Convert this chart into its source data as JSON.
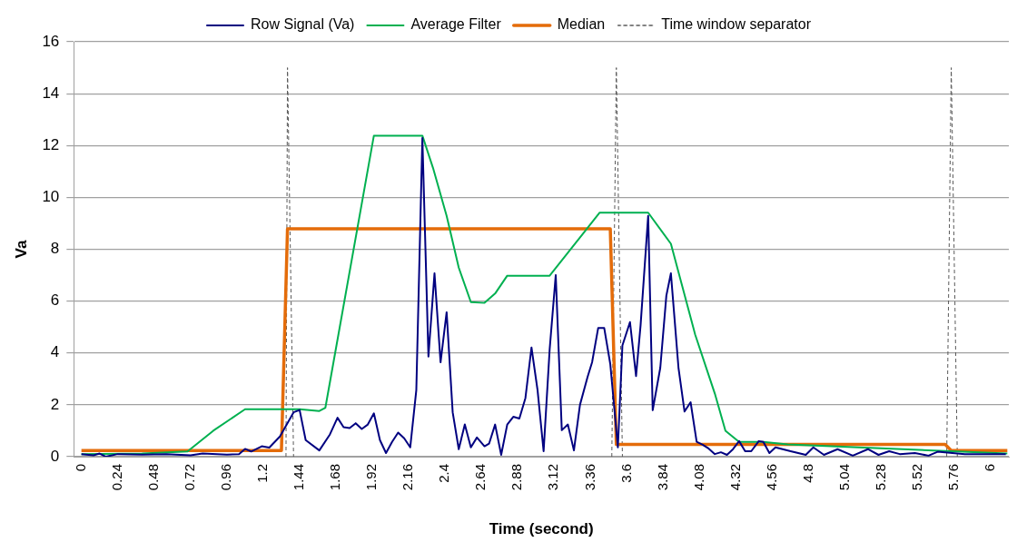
{
  "chart_data": {
    "type": "line",
    "xlabel": "Time (second)",
    "ylabel": "Va",
    "xlim": [
      -0.05,
      6.12
    ],
    "xticks": [
      0,
      0.24,
      0.48,
      0.72,
      0.96,
      1.2,
      1.44,
      1.68,
      1.92,
      2.16,
      2.4,
      2.64,
      2.88,
      3.12,
      3.36,
      3.6,
      3.84,
      4.08,
      4.32,
      4.56,
      4.8,
      5.04,
      5.28,
      5.52,
      5.76,
      6
    ],
    "ylim": [
      0,
      16
    ],
    "yticks": [
      0,
      2,
      4,
      6,
      8,
      10,
      12,
      14,
      16
    ],
    "grid": "y",
    "legend": "top",
    "marker": "none",
    "series": [
      {
        "name": "Row Signal (Va)",
        "color": "#000080",
        "x": [
          0,
          0.08,
          0.12,
          0.16,
          0.24,
          0.4,
          0.56,
          0.72,
          0.8,
          0.96,
          1.04,
          1.08,
          1.12,
          1.19,
          1.24,
          1.31,
          1.4,
          1.44,
          1.48,
          1.57,
          1.64,
          1.69,
          1.73,
          1.77,
          1.81,
          1.85,
          1.89,
          1.93,
          1.97,
          2.01,
          2.05,
          2.09,
          2.13,
          2.17,
          2.21,
          2.25,
          2.29,
          2.33,
          2.37,
          2.41,
          2.45,
          2.49,
          2.53,
          2.57,
          2.61,
          2.66,
          2.69,
          2.73,
          2.77,
          2.81,
          2.85,
          2.89,
          2.93,
          2.97,
          3.01,
          3.05,
          3.09,
          3.13,
          3.17,
          3.21,
          3.25,
          3.29,
          3.34,
          3.37,
          3.41,
          3.45,
          3.49,
          3.54,
          3.57,
          3.62,
          3.66,
          3.69,
          3.74,
          3.77,
          3.82,
          3.86,
          3.89,
          3.94,
          3.98,
          4.02,
          4.06,
          4.1,
          4.14,
          4.18,
          4.22,
          4.26,
          4.3,
          4.34,
          4.38,
          4.42,
          4.47,
          4.5,
          4.54,
          4.58,
          4.68,
          4.78,
          4.83,
          4.9,
          4.99,
          5.09,
          5.19,
          5.26,
          5.33,
          5.4,
          5.5,
          5.59,
          5.65,
          5.83,
          6.1
        ],
        "values": [
          0.1,
          0.05,
          0.12,
          0,
          0.1,
          0.08,
          0.1,
          0.05,
          0.12,
          0.08,
          0.1,
          0.3,
          0.2,
          0.4,
          0.35,
          0.78,
          1.71,
          1.8,
          0.64,
          0.24,
          0.86,
          1.5,
          1.14,
          1.1,
          1.29,
          1.07,
          1.24,
          1.67,
          0.64,
          0.14,
          0.57,
          0.93,
          0.71,
          0.36,
          2.57,
          12.29,
          3.86,
          7.07,
          3.64,
          5.57,
          1.71,
          0.29,
          1.24,
          0.36,
          0.74,
          0.4,
          0.5,
          1.24,
          0.07,
          1.24,
          1.54,
          1.47,
          2.26,
          4.21,
          2.57,
          0.21,
          4.14,
          7,
          1.02,
          1.24,
          0.24,
          2,
          3.07,
          3.64,
          4.96,
          4.96,
          3.57,
          0.36,
          4.29,
          5.19,
          3.11,
          5.07,
          9.29,
          1.79,
          3.43,
          6.21,
          7.07,
          3.43,
          1.74,
          2.1,
          0.57,
          0.46,
          0.31,
          0.1,
          0.17,
          0.07,
          0.29,
          0.6,
          0.21,
          0.21,
          0.6,
          0.57,
          0.14,
          0.36,
          0.21,
          0.07,
          0.36,
          0.07,
          0.29,
          0.04,
          0.29,
          0.07,
          0.21,
          0.1,
          0.14,
          0.04,
          0.19,
          0.1,
          0.1
        ]
      },
      {
        "name": "Average Filter",
        "color": "#00b050",
        "x": [
          0,
          0.4,
          0.7,
          0.87,
          1.08,
          1.44,
          1.57,
          1.61,
          1.93,
          2.25,
          2.32,
          2.41,
          2.49,
          2.57,
          2.66,
          2.73,
          2.81,
          3.09,
          3.42,
          3.74,
          3.89,
          4.05,
          4.18,
          4.25,
          4.34,
          4.5,
          4.66,
          6.11
        ],
        "values": [
          0.1,
          0.12,
          0.2,
          1,
          1.83,
          1.83,
          1.76,
          1.89,
          12.38,
          12.38,
          11.14,
          9.29,
          7.29,
          5.96,
          5.93,
          6.29,
          6.98,
          6.98,
          9.41,
          9.41,
          8.21,
          4.71,
          2.43,
          1,
          0.57,
          0.57,
          0.47,
          0.12
        ]
      },
      {
        "name": "Median",
        "color": "#e46c0a",
        "x": [
          0,
          1.32,
          1.36,
          3.49,
          3.53,
          5.7,
          5.74,
          6.11
        ],
        "values": [
          0.24,
          0.24,
          8.79,
          8.79,
          0.47,
          0.47,
          0.24,
          0.24
        ]
      },
      {
        "name": "Time window separator",
        "color": "#595959",
        "line_style": "dashed",
        "x": [
          1.35,
          1.36,
          1.4
        ],
        "values": [
          0,
          15,
          0
        ]
      },
      {
        "color": "#595959",
        "line_style": "dashed",
        "x": [
          3.5,
          3.53,
          3.57
        ],
        "values": [
          0,
          15,
          0
        ]
      },
      {
        "color": "#595959",
        "line_style": "dashed",
        "x": [
          5.71,
          5.74,
          5.78
        ],
        "values": [
          0,
          15,
          0
        ]
      }
    ]
  }
}
